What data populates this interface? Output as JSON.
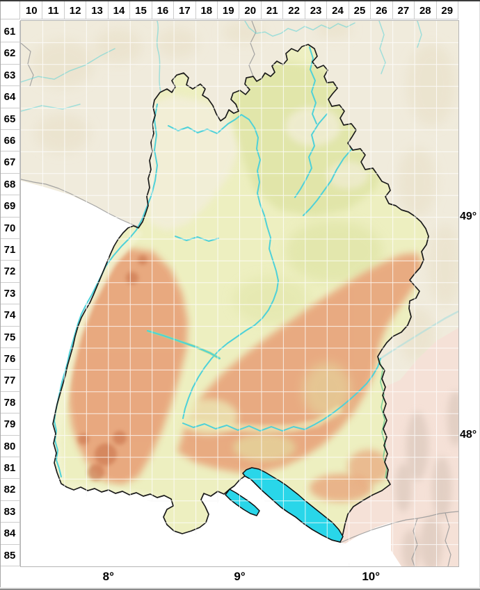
{
  "grid": {
    "col_headers": [
      "10",
      "11",
      "12",
      "13",
      "14",
      "15",
      "16",
      "17",
      "18",
      "19",
      "20",
      "21",
      "22",
      "23",
      "24",
      "25",
      "26",
      "27",
      "28",
      "29"
    ],
    "row_headers": [
      "61",
      "62",
      "63",
      "64",
      "65",
      "66",
      "67",
      "68",
      "69",
      "70",
      "71",
      "72",
      "73",
      "74",
      "75",
      "76",
      "77",
      "78",
      "79",
      "80",
      "81",
      "82",
      "83",
      "84",
      "85"
    ]
  },
  "axis_labels": {
    "latitude": [
      "49°",
      "48°"
    ],
    "longitude": [
      "8°",
      "9°",
      "10°"
    ]
  },
  "colors": {
    "lake": "#29d6e9",
    "river": "#4ed1d8",
    "state_border": "#1a1a1a",
    "grid_line": "#ffffff",
    "elevation_low": "#edefc0",
    "elevation_mid": "#dfe4a6",
    "elevation_high": "#e8a57c",
    "elevation_peak": "#cf7d55",
    "lowland_cream": "#f2eed9",
    "outside_terrain": "#f0ebdc",
    "outside_alps": "#f5e1d7",
    "header_text": "#000000"
  }
}
